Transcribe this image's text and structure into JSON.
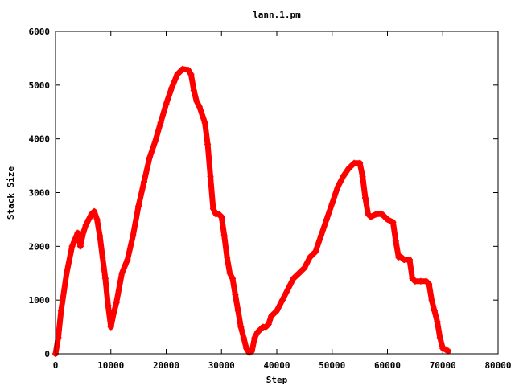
{
  "chart_data": {
    "type": "scatter",
    "title": "lann.1.pm",
    "xlabel": "Step",
    "ylabel": "Stack Size",
    "xlim": [
      0,
      80000
    ],
    "ylim": [
      0,
      6000
    ],
    "xticks": [
      0,
      10000,
      20000,
      30000,
      40000,
      50000,
      60000,
      70000,
      80000
    ],
    "yticks": [
      0,
      1000,
      2000,
      3000,
      4000,
      5000,
      6000
    ],
    "xtick_labels": [
      "0",
      "10000",
      "20000",
      "30000",
      "40000",
      "50000",
      "60000",
      "70000",
      "80000"
    ],
    "ytick_labels": [
      "0",
      "1000",
      "2000",
      "3000",
      "4000",
      "5000",
      "6000"
    ],
    "grid": false,
    "marker": "plus",
    "series": [
      {
        "color": "#ff0000",
        "x": [
          0,
          500,
          1000,
          2000,
          3000,
          4000,
          4500,
          5000,
          5500,
          6000,
          6500,
          7000,
          7500,
          8000,
          8500,
          9000,
          9500,
          10000,
          10500,
          11000,
          12000,
          13000,
          14000,
          15000,
          16000,
          17000,
          18000,
          19000,
          20000,
          21000,
          22000,
          23000,
          24000,
          24500,
          25000,
          25500,
          26000,
          27000,
          27500,
          28000,
          28500,
          29000,
          29500,
          30000,
          30500,
          31000,
          31500,
          32000,
          32500,
          33000,
          33500,
          34000,
          34500,
          35000,
          35500,
          36000,
          36500,
          37000,
          37500,
          38000,
          38500,
          39000,
          40000,
          41000,
          42000,
          43000,
          44000,
          45000,
          46000,
          47000,
          48000,
          49000,
          50000,
          51000,
          52000,
          53000,
          54000,
          55000,
          55500,
          56000,
          56500,
          57000,
          58000,
          59000,
          60000,
          61000,
          61500,
          62000,
          62500,
          63000,
          64000,
          64500,
          65000,
          66000,
          67000,
          67500,
          68000,
          68500,
          69000,
          69500,
          70000,
          70500,
          71000
        ],
        "y": [
          0,
          300,
          800,
          1500,
          2000,
          2250,
          2000,
          2250,
          2400,
          2500,
          2600,
          2650,
          2500,
          2200,
          1800,
          1400,
          900,
          500,
          750,
          950,
          1500,
          1750,
          2200,
          2750,
          3200,
          3650,
          3950,
          4300,
          4650,
          4950,
          5200,
          5300,
          5280,
          5200,
          4900,
          4700,
          4600,
          4300,
          3900,
          3300,
          2700,
          2600,
          2600,
          2550,
          2200,
          1800,
          1500,
          1400,
          1100,
          800,
          500,
          300,
          100,
          20,
          50,
          300,
          400,
          450,
          500,
          500,
          550,
          700,
          800,
          1000,
          1200,
          1400,
          1500,
          1600,
          1800,
          1900,
          2200,
          2500,
          2800,
          3100,
          3300,
          3450,
          3550,
          3550,
          3300,
          2900,
          2600,
          2550,
          2600,
          2600,
          2500,
          2450,
          2100,
          1800,
          1800,
          1750,
          1750,
          1400,
          1350,
          1350,
          1350,
          1300,
          1000,
          800,
          600,
          300,
          100,
          80,
          50
        ]
      }
    ]
  }
}
